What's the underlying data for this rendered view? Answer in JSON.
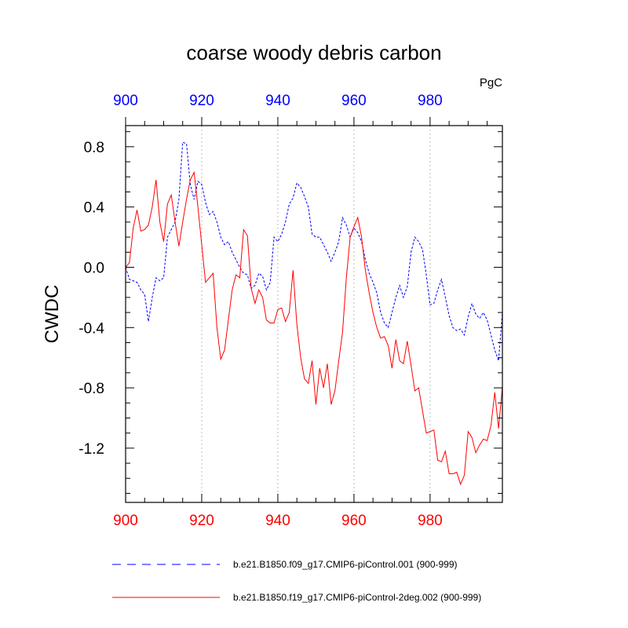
{
  "chart_data": {
    "type": "line",
    "title": "coarse woody debris carbon",
    "units": "PgC",
    "ylabel": "CWDC",
    "xlim": [
      900,
      999
    ],
    "ylim": [
      -1.56,
      0.94
    ],
    "x_ticks": [
      900,
      920,
      940,
      960,
      980
    ],
    "x_tick_labels": [
      "900",
      "920",
      "940",
      "960",
      "980"
    ],
    "y_ticks": [
      0.8,
      0.4,
      0.0,
      -0.4,
      -0.8,
      -1.2
    ],
    "y_tick_labels": [
      "0.8",
      "0.4",
      "0.0",
      "-0.4",
      "-0.8",
      "-1.2"
    ],
    "grid": "vertical dotted lines at x ticks",
    "colors": {
      "top_axis": "#0000ff",
      "bottom_axis": "#ff0000"
    },
    "series": [
      {
        "name": "b.e21.B1850.f09_g17.CMIP6-piControl.001 (900-999)",
        "color": "#0000ff",
        "dash": "dashed",
        "x_start": 900,
        "values": [
          0.0,
          -0.08,
          -0.09,
          -0.1,
          -0.15,
          -0.18,
          -0.36,
          -0.2,
          -0.07,
          -0.09,
          -0.07,
          0.2,
          0.25,
          0.3,
          0.45,
          0.83,
          0.82,
          0.55,
          0.45,
          0.57,
          0.55,
          0.43,
          0.35,
          0.37,
          0.3,
          0.2,
          0.15,
          0.17,
          0.1,
          0.05,
          0.0,
          -0.04,
          -0.05,
          -0.14,
          -0.12,
          -0.04,
          -0.06,
          -0.15,
          -0.1,
          0.2,
          0.17,
          0.22,
          0.3,
          0.42,
          0.46,
          0.56,
          0.53,
          0.47,
          0.4,
          0.22,
          0.2,
          0.2,
          0.15,
          0.1,
          0.04,
          0.1,
          0.17,
          0.33,
          0.28,
          0.2,
          0.26,
          0.23,
          0.17,
          0.05,
          -0.04,
          -0.1,
          -0.17,
          -0.3,
          -0.37,
          -0.4,
          -0.3,
          -0.2,
          -0.12,
          -0.2,
          -0.13,
          0.1,
          0.2,
          0.17,
          0.12,
          -0.05,
          -0.25,
          -0.24,
          -0.15,
          -0.08,
          -0.2,
          -0.32,
          -0.4,
          -0.42,
          -0.41,
          -0.45,
          -0.33,
          -0.24,
          -0.31,
          -0.34,
          -0.3,
          -0.35,
          -0.45,
          -0.55,
          -0.62,
          -0.3
        ]
      },
      {
        "name": "b.e21.B1850.f19_g17.CMIP6-piControl-2deg.002 (900-999)",
        "color": "#ff0000",
        "dash": "solid",
        "x_start": 900,
        "values": [
          0.0,
          0.03,
          0.26,
          0.38,
          0.24,
          0.25,
          0.28,
          0.4,
          0.58,
          0.3,
          0.17,
          0.42,
          0.48,
          0.3,
          0.14,
          0.3,
          0.45,
          0.58,
          0.63,
          0.4,
          0.15,
          -0.1,
          -0.07,
          -0.04,
          -0.4,
          -0.61,
          -0.55,
          -0.35,
          -0.15,
          -0.05,
          -0.07,
          0.25,
          0.21,
          -0.14,
          -0.24,
          -0.15,
          -0.2,
          -0.35,
          -0.37,
          -0.37,
          -0.28,
          -0.27,
          -0.36,
          -0.3,
          -0.02,
          -0.38,
          -0.6,
          -0.74,
          -0.77,
          -0.62,
          -0.91,
          -0.67,
          -0.8,
          -0.64,
          -0.91,
          -0.82,
          -0.62,
          -0.43,
          -0.07,
          0.2,
          0.27,
          0.33,
          0.2,
          -0.02,
          -0.17,
          -0.3,
          -0.4,
          -0.47,
          -0.46,
          -0.52,
          -0.67,
          -0.48,
          -0.62,
          -0.64,
          -0.49,
          -0.65,
          -0.82,
          -0.8,
          -0.95,
          -1.1,
          -1.09,
          -1.08,
          -1.28,
          -1.29,
          -1.22,
          -1.37,
          -1.37,
          -1.36,
          -1.44,
          -1.38,
          -1.09,
          -1.13,
          -1.23,
          -1.18,
          -1.14,
          -1.15,
          -1.05,
          -0.83,
          -1.07,
          -0.79
        ]
      }
    ]
  }
}
